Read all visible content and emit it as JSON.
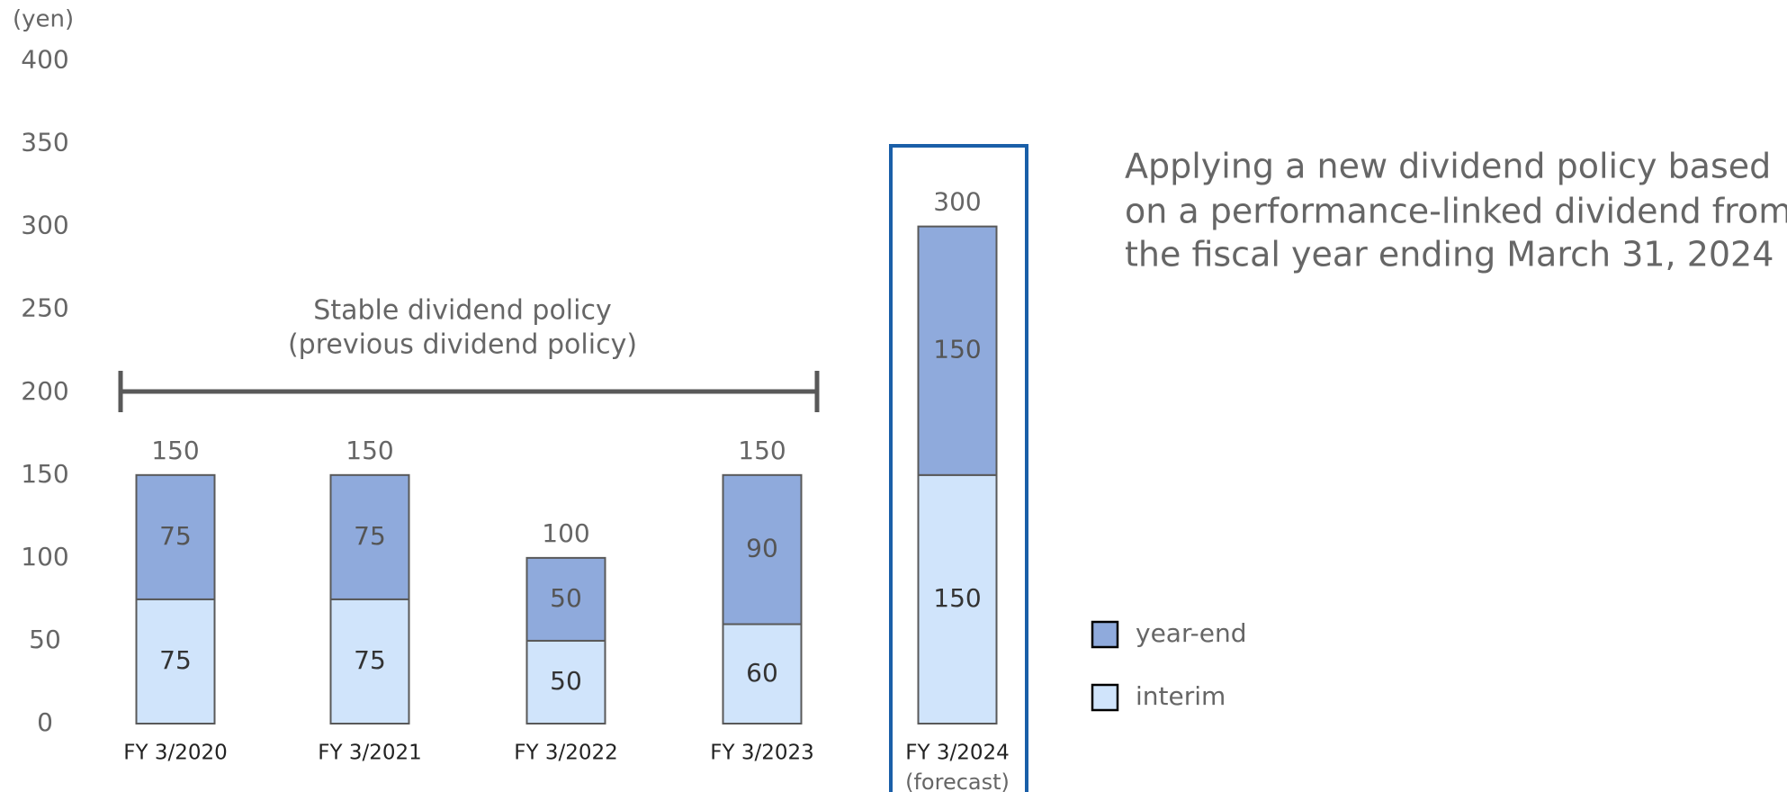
{
  "chart_data": {
    "type": "stacked_bar",
    "y_axis_label": "(yen)",
    "categories": [
      "FY 3/2020",
      "FY 3/2021",
      "FY 3/2022",
      "FY 3/2023",
      "FY 3/2024"
    ],
    "category_note": "(forecast)",
    "series": [
      {
        "name": "interim",
        "color": "#d0e4fb",
        "values": [
          75,
          75,
          50,
          60,
          150
        ]
      },
      {
        "name": "year-end",
        "color": "#8faadc",
        "values": [
          75,
          75,
          50,
          90,
          150
        ]
      }
    ],
    "totals": [
      150,
      150,
      100,
      150,
      300
    ],
    "ylim": [
      0,
      400
    ],
    "yticks": [
      0,
      50,
      100,
      150,
      200,
      250,
      300,
      350,
      400
    ],
    "grid": false,
    "bracket_annotation": [
      "Stable dividend policy",
      "(previous dividend policy)"
    ],
    "policy_annotation": [
      "Applying a new dividend policy based",
      "on a performance-linked dividend from",
      "the fiscal year ending March 31, 2024"
    ],
    "highlight_color": "#1a5fa8"
  }
}
